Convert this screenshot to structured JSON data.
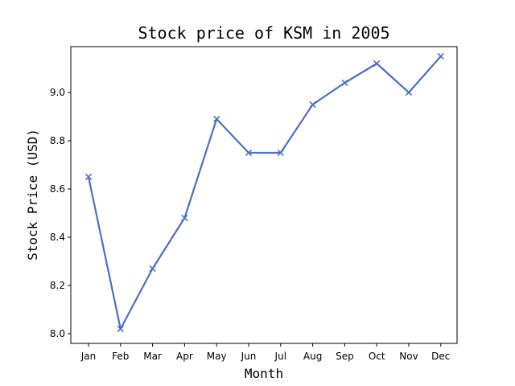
{
  "chart_data": {
    "type": "line",
    "title": "Stock price of KSM in 2005",
    "xlabel": "Month",
    "ylabel": "Stock Price (USD)",
    "categories": [
      "Jan",
      "Feb",
      "Mar",
      "Apr",
      "May",
      "Jun",
      "Jul",
      "Aug",
      "Sep",
      "Oct",
      "Nov",
      "Dec"
    ],
    "series": [
      {
        "values": [
          8.65,
          8.02,
          8.27,
          8.48,
          8.89,
          8.75,
          8.75,
          8.95,
          9.04,
          9.12,
          9.0,
          9.15
        ],
        "color": "#4a6fc9",
        "marker": "x"
      }
    ],
    "ylim": [
      7.96,
      9.19
    ],
    "yticks": [
      8.0,
      8.2,
      8.4,
      8.6,
      8.8,
      9.0
    ],
    "ytick_labels": [
      "8.0",
      "8.2",
      "8.4",
      "8.6",
      "8.8",
      "9.0"
    ],
    "grid": false,
    "legend": false
  }
}
